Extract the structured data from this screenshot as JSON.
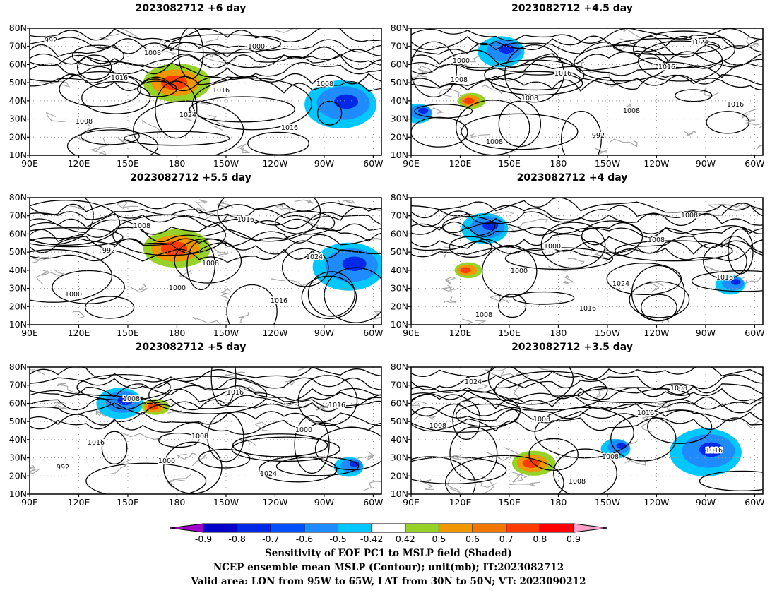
{
  "panels": [
    {
      "title": "2023082712 +6 day",
      "contour_labels": [
        "992",
        "1016",
        "1024",
        "1000",
        "1008",
        "1008",
        "1008",
        "1016",
        "1016"
      ],
      "positive_patches": [
        {
          "lon": 180,
          "lat": 50,
          "size": "large"
        }
      ],
      "negative_patches": [
        {
          "lon": -80,
          "lat": 38,
          "size": "large"
        }
      ]
    },
    {
      "title": "2023082712 +4.5 day",
      "contour_labels": [
        "1000",
        "1008",
        "992",
        "1016",
        "1016",
        "1008",
        "1016",
        "1008",
        "1024",
        "1008"
      ],
      "positive_patches": [
        {
          "lon": 127,
          "lat": 40,
          "size": "small"
        }
      ],
      "negative_patches": [
        {
          "lon": 145,
          "lat": 67,
          "size": "medium"
        },
        {
          "lon": 94,
          "lat": 33,
          "size": "small"
        }
      ]
    },
    {
      "title": "2023082712 +5.5 day",
      "contour_labels": [
        "992",
        "1000",
        "1016",
        "1024",
        "1000",
        "1008",
        "1008",
        "1016"
      ],
      "positive_patches": [
        {
          "lon": 180,
          "lat": 52,
          "size": "large"
        }
      ],
      "negative_patches": [
        {
          "lon": -75,
          "lat": 42,
          "size": "large"
        }
      ]
    },
    {
      "title": "2023082712 +4 day",
      "contour_labels": [
        "1000",
        "1016",
        "1008",
        "1016",
        "1008",
        "1000",
        "1024",
        "1008"
      ],
      "positive_patches": [
        {
          "lon": 125,
          "lat": 40,
          "size": "small"
        }
      ],
      "negative_patches": [
        {
          "lon": 135,
          "lat": 63,
          "size": "medium"
        },
        {
          "lon": -75,
          "lat": 32,
          "size": "small"
        }
      ]
    },
    {
      "title": "2023082712 +5 day",
      "contour_labels": [
        "1000",
        "1016",
        "1000",
        "992",
        "1008",
        "1008",
        "1024",
        "1016",
        "1016"
      ],
      "positive_patches": [
        {
          "lon": 167,
          "lat": 58,
          "size": "small"
        }
      ],
      "negative_patches": [
        {
          "lon": 145,
          "lat": 60,
          "size": "medium"
        },
        {
          "lon": -75,
          "lat": 25,
          "size": "small"
        }
      ]
    },
    {
      "title": "2023082712 +3.5 day",
      "contour_labels": [
        "1008",
        "1016",
        "1016",
        "1024",
        "1008",
        "1008",
        "1008",
        "1008"
      ],
      "positive_patches": [
        {
          "lon": 165,
          "lat": 27,
          "size": "medium"
        }
      ],
      "negative_patches": [
        {
          "lon": -90,
          "lat": 33,
          "size": "large"
        },
        {
          "lon": -145,
          "lat": 35,
          "size": "small"
        }
      ]
    }
  ],
  "lat_ticks": [
    "80N",
    "70N",
    "60N",
    "50N",
    "40N",
    "30N",
    "20N",
    "10N"
  ],
  "lon_ticks": [
    "90E",
    "120E",
    "150E",
    "180",
    "150W",
    "120W",
    "90W",
    "60W"
  ],
  "colorbar": {
    "labels": [
      "-0.9",
      "-0.8",
      "-0.7",
      "-0.6",
      "-0.5",
      "-0.42",
      "0.42",
      "0.5",
      "0.6",
      "0.7",
      "0.8",
      "0.9"
    ],
    "colors": [
      "#a000c8",
      "#0000c8",
      "#0028e6",
      "#0050ff",
      "#1e8cff",
      "#00c8ff",
      "#ffffff",
      "#96d228",
      "#f09600",
      "#f07800",
      "#ff3c00",
      "#ff0000",
      "#ffa0c8"
    ]
  },
  "captions": [
    "Sensitivity of EOF PC1 to MSLP field (Shaded)",
    "NCEP ensemble mean MSLP (Contour); unit(mb); IT:2023082712",
    "Valid area: LON from 95W to 65W, LAT from 30N to 50N; VT: 2023090212"
  ]
}
